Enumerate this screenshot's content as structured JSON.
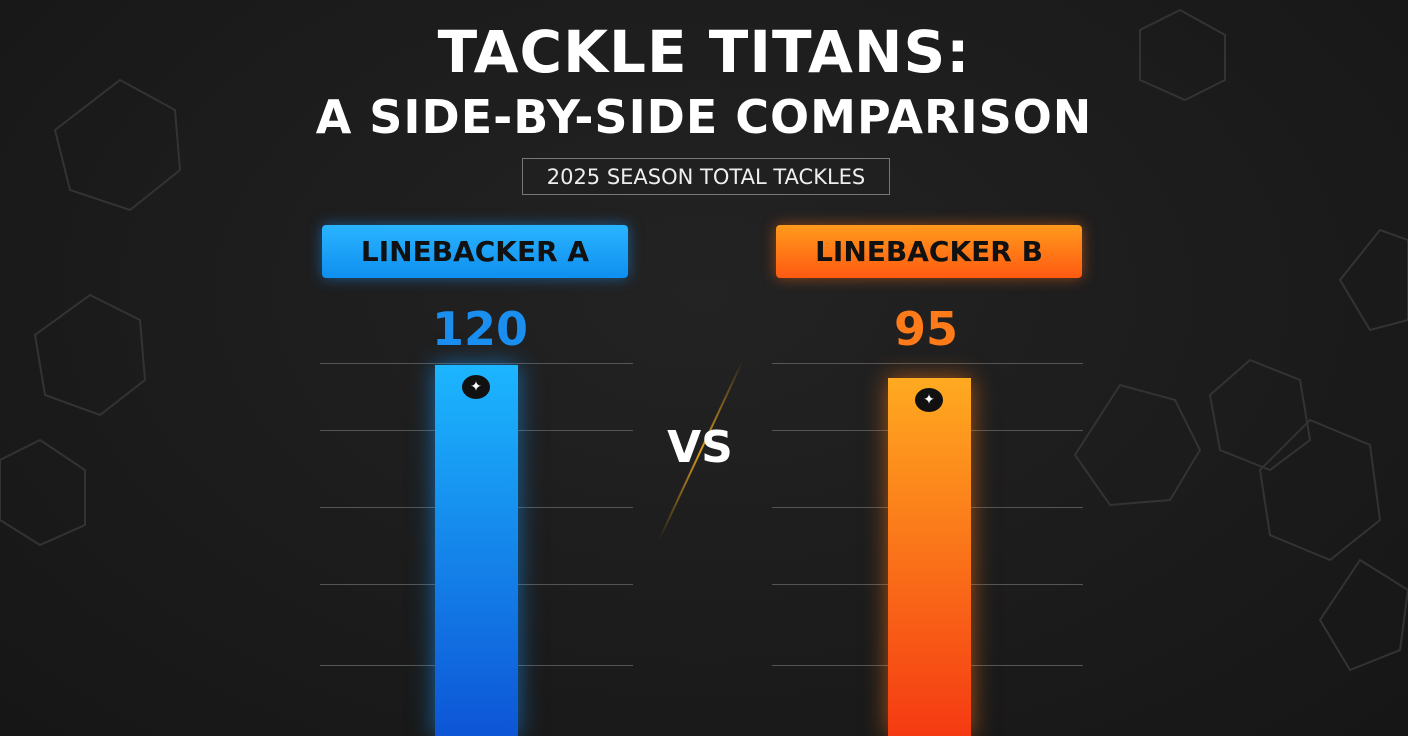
{
  "chart_data": {
    "type": "bar",
    "title": "TACKLE TITANS:",
    "subtitle": "A SIDE-BY-SIDE COMPARISON",
    "caption": "2025 SEASON TOTAL TACKLES",
    "categories": [
      "LINEBACKER A",
      "LINEBACKER B"
    ],
    "values": [
      120,
      95
    ],
    "colors": [
      "#1a8ff0",
      "#ff7a18"
    ],
    "separator": "VS",
    "grid": true,
    "logo_icon": "team-logo-icon"
  }
}
